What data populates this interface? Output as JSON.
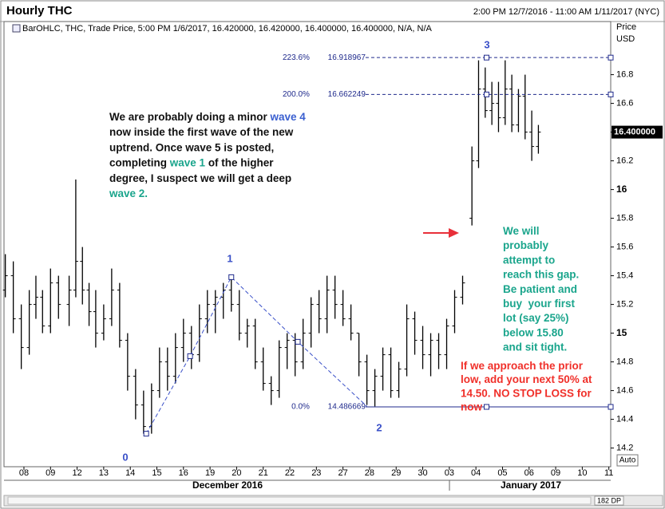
{
  "chart_data": {
    "type": "ohlc",
    "title": "Hourly THC",
    "time_range": "2:00 PM 12/7/2016 - 11:00 AM 1/11/2017 (NYC)",
    "info": "BarOHLC, THC, Trade Price, 5:00 PM 1/6/2017, 16.420000, 16.420000, 16.400000, 16.400000, N/A, N/A",
    "y_axis_label": [
      "Price",
      "USD"
    ],
    "color": "#000000",
    "xlim": [
      -0.75,
      22.07
    ],
    "ylim": [
      14.07,
      17.17
    ],
    "yticks": [
      14.2,
      14.4,
      14.6,
      14.8,
      15,
      15.2,
      15.4,
      15.6,
      15.8,
      16,
      16.2,
      16.4,
      16.6,
      16.8
    ],
    "xticks": [
      {
        "value": 0,
        "label": "08"
      },
      {
        "value": 1,
        "label": "09"
      },
      {
        "value": 2,
        "label": "12"
      },
      {
        "value": 3,
        "label": "13"
      },
      {
        "value": 4,
        "label": "14"
      },
      {
        "value": 5,
        "label": "15"
      },
      {
        "value": 6,
        "label": "16"
      },
      {
        "value": 7,
        "label": "19"
      },
      {
        "value": 8,
        "label": "20"
      },
      {
        "value": 9,
        "label": "21"
      },
      {
        "value": 10,
        "label": "22"
      },
      {
        "value": 11,
        "label": "23"
      },
      {
        "value": 12,
        "label": "27"
      },
      {
        "value": 13,
        "label": "28"
      },
      {
        "value": 14,
        "label": "29"
      },
      {
        "value": 15,
        "label": "30"
      },
      {
        "value": 16,
        "label": "03"
      },
      {
        "value": 17,
        "label": "04"
      },
      {
        "value": 18,
        "label": "05"
      },
      {
        "value": 19,
        "label": "06"
      },
      {
        "value": 20,
        "label": "09"
      },
      {
        "value": 21,
        "label": "10"
      },
      {
        "value": 22,
        "label": "11"
      }
    ],
    "months": [
      "December 2016",
      "January 2017"
    ],
    "last_price": {
      "value": 16.4,
      "label": "16.400000"
    },
    "ohlc": {
      "x": [
        -0.7,
        -0.4,
        -0.1,
        0.2,
        0.45,
        0.7,
        1.0,
        1.3,
        1.7,
        1.95,
        2.2,
        2.45,
        2.7,
        3.0,
        3.3,
        3.6,
        3.9,
        4.2,
        4.5,
        4.8,
        5.1,
        5.4,
        5.7,
        6.0,
        6.3,
        6.6,
        6.9,
        7.2,
        7.5,
        7.8,
        8.1,
        8.4,
        8.7,
        9.0,
        9.3,
        9.6,
        9.9,
        10.2,
        10.5,
        10.8,
        11.1,
        11.4,
        11.7,
        12.0,
        12.3,
        12.6,
        12.9,
        13.2,
        13.5,
        13.8,
        14.1,
        14.4,
        14.7,
        15.0,
        15.3,
        15.6,
        15.9,
        16.2,
        16.5,
        16.85,
        17.1,
        17.35,
        17.6,
        17.85,
        18.1,
        18.35,
        18.6,
        18.85,
        19.1,
        19.35
      ],
      "open": [
        15.3,
        15.4,
        15.1,
        14.9,
        15.2,
        15.25,
        15.05,
        15.35,
        15.2,
        15.3,
        15.5,
        15.3,
        15.15,
        15.0,
        15.1,
        15.3,
        14.95,
        14.7,
        14.5,
        14.35,
        14.6,
        14.8,
        14.7,
        14.9,
        15.0,
        14.85,
        15.1,
        15.2,
        15.25,
        15.3,
        15.2,
        15.0,
        15.05,
        14.8,
        14.65,
        14.6,
        14.9,
        14.95,
        14.8,
        15.0,
        15.2,
        15.1,
        15.3,
        15.2,
        15.1,
        15.0,
        14.8,
        14.6,
        14.7,
        14.85,
        14.6,
        14.75,
        15.1,
        14.95,
        14.85,
        14.95,
        14.85,
        15.05,
        15.25,
        15.8,
        16.2,
        16.7,
        16.55,
        16.6,
        16.5,
        16.7,
        16.45,
        16.65,
        16.4,
        16.3
      ],
      "high": [
        15.55,
        15.5,
        15.2,
        15.3,
        15.4,
        15.3,
        15.45,
        15.4,
        15.4,
        16.07,
        15.6,
        15.35,
        15.3,
        15.2,
        15.45,
        15.35,
        15.0,
        14.75,
        14.6,
        14.65,
        14.9,
        14.9,
        15.0,
        15.1,
        15.05,
        15.2,
        15.3,
        15.3,
        15.35,
        15.39,
        15.3,
        15.1,
        15.1,
        14.9,
        14.7,
        14.95,
        15.0,
        15.0,
        15.1,
        15.25,
        15.3,
        15.4,
        15.4,
        15.3,
        15.2,
        15.0,
        14.85,
        14.75,
        14.9,
        14.9,
        14.8,
        15.2,
        15.15,
        15.05,
        15.0,
        15.0,
        15.1,
        15.3,
        15.4,
        16.3,
        16.9,
        16.85,
        16.75,
        16.75,
        16.9,
        16.8,
        16.7,
        16.8,
        16.55,
        16.45
      ],
      "low": [
        15.25,
        15.0,
        14.75,
        14.85,
        15.1,
        15.0,
        15.0,
        15.1,
        15.05,
        15.25,
        15.2,
        15.05,
        14.9,
        14.95,
        15.05,
        14.9,
        14.6,
        14.4,
        14.3,
        14.3,
        14.55,
        14.6,
        14.65,
        14.8,
        14.75,
        14.8,
        15.0,
        15.0,
        15.1,
        15.15,
        14.95,
        14.9,
        14.75,
        14.6,
        14.5,
        14.55,
        14.75,
        14.7,
        14.75,
        14.9,
        15.0,
        15.0,
        15.1,
        15.05,
        14.95,
        14.7,
        14.5,
        14.49,
        14.6,
        14.55,
        14.55,
        14.7,
        14.85,
        14.75,
        14.7,
        14.75,
        14.75,
        15.0,
        15.2,
        15.75,
        16.15,
        16.5,
        16.45,
        16.4,
        16.45,
        16.4,
        16.4,
        16.35,
        16.2,
        16.25
      ],
      "close": [
        15.4,
        15.1,
        14.9,
        15.2,
        15.25,
        15.05,
        15.35,
        15.2,
        15.3,
        15.5,
        15.3,
        15.15,
        15.0,
        15.1,
        15.3,
        14.95,
        14.7,
        14.5,
        14.35,
        14.6,
        14.8,
        14.7,
        14.9,
        15.0,
        14.85,
        15.1,
        15.2,
        15.25,
        15.3,
        15.2,
        15.0,
        15.05,
        14.8,
        14.65,
        14.6,
        14.9,
        14.95,
        14.8,
        15.0,
        15.2,
        15.1,
        15.3,
        15.2,
        15.1,
        15.0,
        14.8,
        14.6,
        14.7,
        14.85,
        14.6,
        14.75,
        15.1,
        14.95,
        14.85,
        14.95,
        14.85,
        15.05,
        15.25,
        15.35,
        16.2,
        16.7,
        16.55,
        16.6,
        16.5,
        16.7,
        16.45,
        16.65,
        16.4,
        16.3,
        16.4
      ]
    },
    "wave_line": {
      "x": [
        4.6,
        6.25,
        7.8,
        10.3,
        12.9
      ],
      "y": [
        14.3,
        14.84,
        15.39,
        14.94,
        14.49
      ],
      "color": "#3a50c8"
    },
    "wave_labels": [
      "0",
      "1",
      "2",
      "3"
    ],
    "fib": {
      "x": [
        12.85,
        17.4
      ],
      "color": "#1f2a8c",
      "levels": [
        {
          "label": "223.6%",
          "value": 16.918967
        },
        {
          "label": "200.0%",
          "value": 16.662249
        },
        {
          "label": "0.0%",
          "value": 14.486669
        }
      ]
    },
    "notes": [
      {
        "lines": [
          [
            {
              "text": "We are probably doing a minor "
            },
            {
              "text": "wave 4",
              "color": "#3a5fd0"
            }
          ],
          [
            {
              "text": "now inside the first wave of the new"
            }
          ],
          [
            {
              "text": "uptrend. Once wave 5 is posted,"
            }
          ],
          [
            {
              "text": "completing "
            },
            {
              "text": "wave 1",
              "color": "#1aa58c"
            },
            {
              "text": " of the higher"
            }
          ],
          [
            {
              "text": "degree, I suspect we will get a deep"
            }
          ],
          [
            {
              "text": "wave 2.",
              "color": "#1aa58c"
            }
          ]
        ],
        "color": "#111111"
      },
      {
        "lines": [
          [
            {
              "text": "We will"
            }
          ],
          [
            {
              "text": "probably"
            }
          ],
          [
            {
              "text": "attempt to"
            }
          ],
          [
            {
              "text": "reach this gap."
            }
          ],
          [
            {
              "text": "Be patient and"
            }
          ],
          [
            {
              "text": "buy  your first"
            }
          ],
          [
            {
              "text": "lot (say 25%)"
            }
          ],
          [
            {
              "text": "below 15.80"
            }
          ],
          [
            {
              "text": "and sit tight."
            }
          ]
        ],
        "color": "#1aa58c"
      },
      {
        "lines": [
          [
            {
              "text": "If we approach the prior"
            }
          ],
          [
            {
              "text": "low, add your next 50% at"
            }
          ],
          [
            {
              "text": "14.50. NO STOP LOSS for"
            }
          ],
          [
            {
              "text": "now"
            }
          ]
        ],
        "color": "#f0302a"
      }
    ],
    "auto_button": "Auto",
    "scroll_label": "182 DP"
  }
}
